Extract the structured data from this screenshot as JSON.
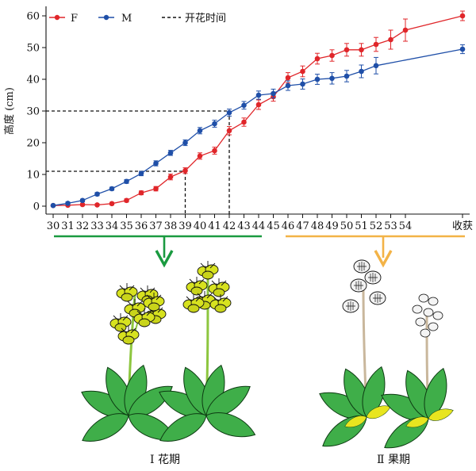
{
  "chart_data": {
    "type": "line",
    "ylabel": "高度 (cm)",
    "xlabel": "",
    "categories": [
      "30",
      "31",
      "32",
      "33",
      "34",
      "35",
      "36",
      "37",
      "38",
      "39",
      "40",
      "41",
      "42",
      "43",
      "44",
      "45",
      "46",
      "47",
      "48",
      "49",
      "50",
      "51",
      "52",
      "53",
      "54",
      "收获"
    ],
    "ylim": [
      0,
      60
    ],
    "yticks": [
      0,
      10,
      20,
      30,
      40,
      50,
      60
    ],
    "grid": false,
    "legend_position": "top-left",
    "series": [
      {
        "name": "F",
        "color": "#e0262a",
        "values": [
          0.2,
          0.3,
          0.5,
          0.4,
          0.8,
          1.8,
          4.2,
          5.5,
          9.2,
          11.2,
          15.8,
          17.5,
          23.8,
          26.5,
          32.0,
          34.5,
          40.5,
          42.5,
          46.5,
          47.5,
          49.3,
          49.3,
          51.0,
          52.5,
          55.5,
          60.0
        ],
        "errors": [
          0.3,
          0.3,
          0.3,
          0.3,
          0.4,
          0.5,
          0.6,
          0.7,
          0.9,
          0.9,
          1.0,
          1.1,
          1.3,
          1.3,
          1.5,
          1.4,
          1.6,
          1.7,
          1.7,
          1.8,
          2.0,
          2.0,
          2.2,
          3.0,
          3.5,
          1.5
        ]
      },
      {
        "name": "M",
        "color": "#1f4fa8",
        "values": [
          0.2,
          0.9,
          1.8,
          3.8,
          5.5,
          7.8,
          10.3,
          13.5,
          16.8,
          20.0,
          23.8,
          26.0,
          29.5,
          31.8,
          35.0,
          35.5,
          38.0,
          38.5,
          40.0,
          40.3,
          41.0,
          42.5,
          44.3,
          null,
          null,
          49.5
        ],
        "errors": [
          0.3,
          0.4,
          0.4,
          0.5,
          0.5,
          0.6,
          0.7,
          0.8,
          0.8,
          0.9,
          1.0,
          1.1,
          1.1,
          1.2,
          1.3,
          1.4,
          1.5,
          1.6,
          1.6,
          1.8,
          1.8,
          2.0,
          2.6,
          null,
          null,
          1.4
        ]
      }
    ],
    "legend": {
      "dashed_label": "开花时间"
    },
    "reference_lines": [
      {
        "y": 11,
        "x": "39"
      },
      {
        "y": 30,
        "x": "42"
      }
    ]
  },
  "stage_labels": {
    "flowering": "Ⅰ 花期",
    "fruiting": "Ⅱ 果期"
  },
  "colors": {
    "flowering_bracket": "#1a9a40",
    "fruiting_bracket": "#f3b347",
    "leaf": "#3fae49",
    "flower": "#d7e21f",
    "fruit": "#e2e2e2"
  }
}
